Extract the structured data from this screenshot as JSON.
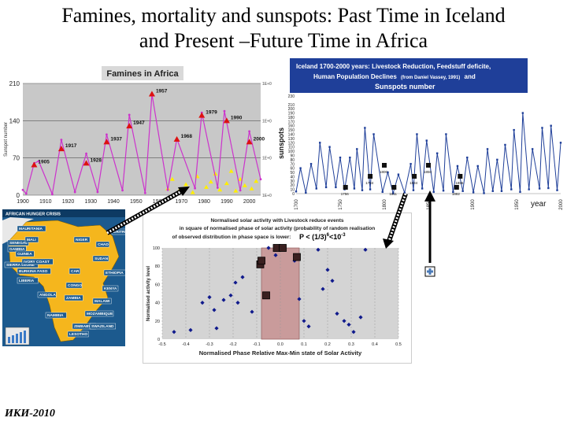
{
  "page": {
    "title_line1": "Famines, mortality and sunspots: Past Time  in Iceland",
    "title_line2": "and Present –Future Time in Africa",
    "footer": "ИКИ-2010"
  },
  "colors": {
    "famine_plot_bg": "#c8c8c8",
    "famine_line": "#cc33cc",
    "famine_marker": "#dd1111",
    "famine_yellow": "#ffee00",
    "iceland_line": "#1f3f99",
    "iceland_header_bg": "#1f3f99",
    "map_sea": "#1c5a8e",
    "map_land": "#f5b61d",
    "solar_point": "#101a8c",
    "solar_band": "#c99b9b"
  },
  "chart_data": [
    {
      "type": "line",
      "title": "Famines in Africa",
      "ylabel": "Sunspot number",
      "x": [
        1900,
        1910,
        1920,
        1930,
        1940,
        1950,
        1960,
        1970,
        1980,
        1990,
        2000
      ],
      "xtick_labels": [
        "1900",
        "1910",
        "1920",
        "1930",
        "1940",
        "1950",
        "1960",
        "1970",
        "1980",
        "1990",
        "2000"
      ],
      "yticks": [
        0,
        70,
        140,
        210
      ],
      "ylim": [
        0,
        210
      ],
      "xlim": [
        1900,
        2005
      ],
      "right_tick_labels": [
        "1E+0",
        "1E+0",
        "1E+0",
        "1E+0"
      ],
      "grid": true,
      "series": [
        {
          "name": "",
          "x": [
            1900,
            1901.5,
            1905,
            1907,
            1913,
            1917,
            1923,
            1928,
            1933,
            1937,
            1944,
            1947,
            1954,
            1957,
            1964,
            1968,
            1976,
            1979,
            1986,
            1989,
            1996,
            2000,
            2005
          ],
          "y": [
            10,
            3,
            60,
            64,
            2,
            104,
            6,
            78,
            6,
            114,
            9,
            151,
            4,
            190,
            10,
            106,
            13,
            155,
            14,
            158,
            9,
            120,
            30
          ]
        }
      ],
      "famine_markers": [
        {
          "year": 1905,
          "label": "1905",
          "y": 57
        },
        {
          "year": 1917,
          "label": "1917",
          "y": 87
        },
        {
          "year": 1928,
          "label": "1928",
          "y": 60
        },
        {
          "year": 1937,
          "label": "1937",
          "y": 100
        },
        {
          "year": 1947,
          "label": "1947",
          "y": 130
        },
        {
          "year": 1957,
          "label": "1957",
          "y": 190
        },
        {
          "year": 1968,
          "label": "1968",
          "y": 105
        },
        {
          "year": 1979,
          "label": "1979",
          "y": 150
        },
        {
          "year": 1990,
          "label": "1990",
          "y": 140
        },
        {
          "year": 2000,
          "label": "2000",
          "y": 100
        }
      ]
    },
    {
      "type": "line",
      "title_line1": "Iceland 1700-2000 years: Livestock Reduction, Feedstuff deficite,",
      "title_line2a": "Human Population Declines",
      "title_line2b": "(from Daniel Vassey, 1991)",
      "title_line2c": "and",
      "title_line3": "Sunspots number",
      "ylabel": "sunspots",
      "xlabel": "year",
      "yticks": [
        0,
        10,
        20,
        30,
        40,
        50,
        60,
        70,
        80,
        90,
        100,
        110,
        120,
        130,
        140,
        150,
        160,
        170,
        180,
        190,
        200,
        210,
        230
      ],
      "ylim": [
        0,
        230
      ],
      "xlim": [
        1700,
        2000
      ],
      "xtick_labels": [
        "1700",
        "1750",
        "1800",
        "1850",
        "1900",
        "1950",
        "2000"
      ],
      "series": [
        {
          "name": "",
          "x": [
            1700,
            1705,
            1711,
            1717,
            1723,
            1727,
            1734,
            1738,
            1745,
            1750,
            1755,
            1761,
            1766,
            1769,
            1775,
            1778,
            1784,
            1788,
            1798,
            1804,
            1810,
            1816,
            1823,
            1830,
            1833,
            1837,
            1843,
            1848,
            1856,
            1860,
            1867,
            1870,
            1878,
            1883,
            1889,
            1894,
            1901,
            1906,
            1913,
            1917,
            1923,
            1928,
            1933,
            1937,
            1944,
            1947,
            1954,
            1957,
            1964,
            1968,
            1976,
            1979,
            1986,
            1989,
            1996,
            2000
          ],
          "y": [
            5,
            60,
            2,
            70,
            12,
            120,
            15,
            110,
            15,
            85,
            10,
            85,
            12,
            105,
            8,
            155,
            10,
            140,
            4,
            50,
            1,
            45,
            2,
            70,
            8,
            140,
            12,
            125,
            4,
            95,
            7,
            140,
            4,
            65,
            6,
            85,
            3,
            65,
            1,
            105,
            6,
            80,
            6,
            115,
            10,
            150,
            4,
            190,
            10,
            105,
            12,
            155,
            13,
            160,
            8,
            120
          ]
        }
      ],
      "event_markers": [
        {
          "year": 1756,
          "label": "1756"
        },
        {
          "year": 1784,
          "label": "1784"
        },
        {
          "year": 1800,
          "label": "1800"
        },
        {
          "year": 1811,
          "label": "1811"
        },
        {
          "year": 1834,
          "label": "1834"
        },
        {
          "year": 1850,
          "label": "1850"
        },
        {
          "year": 1882,
          "label": "1882"
        },
        {
          "year": 1886,
          "label": "1886"
        }
      ]
    },
    {
      "type": "scatter",
      "title_line1": "Normalised solar activity with Livestock reduce events",
      "title_line2": "in square of normalised phase of solar activity (probability of random realisation",
      "title_line3": "of observed  distribution in phase space is lower:",
      "probability_text": "P < (1/3)",
      "probability_exp1": "6",
      "probability_mid": "<10",
      "probability_exp2": "-3",
      "ylabel": "Normalised  activity level",
      "xlabel": "Normalised Phase Relative Max-Min state of Solar Activity",
      "xlim": [
        -0.5,
        0.5
      ],
      "ylim": [
        0,
        100
      ],
      "xtick_labels": [
        "-0.5",
        "-0.4",
        "-0.3",
        "-0.2",
        "-0.1",
        "0.0",
        "0.1",
        "0.2",
        "0.3",
        "0.4",
        "0.5"
      ],
      "ytick_labels": [
        "0",
        "20",
        "40",
        "60",
        "80",
        "100"
      ],
      "highlight_band": [
        -0.08,
        0.08
      ],
      "points": [
        {
          "x": -0.45,
          "y": 8
        },
        {
          "x": -0.38,
          "y": 10
        },
        {
          "x": -0.33,
          "y": 40
        },
        {
          "x": -0.3,
          "y": 46
        },
        {
          "x": -0.28,
          "y": 32
        },
        {
          "x": -0.27,
          "y": 12
        },
        {
          "x": -0.24,
          "y": 43
        },
        {
          "x": -0.21,
          "y": 48
        },
        {
          "x": -0.19,
          "y": 62
        },
        {
          "x": -0.18,
          "y": 40
        },
        {
          "x": -0.16,
          "y": 68
        },
        {
          "x": -0.12,
          "y": 30
        },
        {
          "x": -0.09,
          "y": 82
        },
        {
          "x": -0.05,
          "y": 100
        },
        {
          "x": -0.02,
          "y": 92
        },
        {
          "x": 0.06,
          "y": 86
        },
        {
          "x": 0.08,
          "y": 44
        },
        {
          "x": 0.1,
          "y": 20
        },
        {
          "x": 0.12,
          "y": 14
        },
        {
          "x": 0.16,
          "y": 98
        },
        {
          "x": 0.18,
          "y": 55
        },
        {
          "x": 0.2,
          "y": 76
        },
        {
          "x": 0.22,
          "y": 64
        },
        {
          "x": 0.24,
          "y": 28
        },
        {
          "x": 0.27,
          "y": 20
        },
        {
          "x": 0.29,
          "y": 16
        },
        {
          "x": 0.31,
          "y": 8
        },
        {
          "x": 0.34,
          "y": 24
        },
        {
          "x": 0.36,
          "y": 98
        }
      ],
      "event_points": [
        {
          "x": -0.085,
          "y": 82
        },
        {
          "x": -0.06,
          "y": 48
        },
        {
          "x": -0.015,
          "y": 100
        },
        {
          "x": 0.07,
          "y": 90
        },
        {
          "x": -0.08,
          "y": 86
        },
        {
          "x": 0.01,
          "y": 100
        }
      ]
    }
  ],
  "map": {
    "header": "AFRICAN HUNGER CRISIS",
    "countries": [
      "MAURITANIA",
      "SENEGAL",
      "MALI",
      "NIGER",
      "GAMBIA",
      "GUINEA",
      "SIERRA LEONE",
      "IVORY COAST",
      "BURKINA FASO",
      "CHAD",
      "SUDAN",
      "ETHIOPIA",
      "LIBERIA",
      "CONGO",
      "KENYA",
      "ZAMBIA",
      "ANGOLA",
      "MALAWI",
      "MOZAMBIQUE",
      "ZIMBABWE",
      "SWAZILAND",
      "LESOTHO",
      "ERITREA",
      "CAR",
      "NAMIBIA"
    ]
  }
}
